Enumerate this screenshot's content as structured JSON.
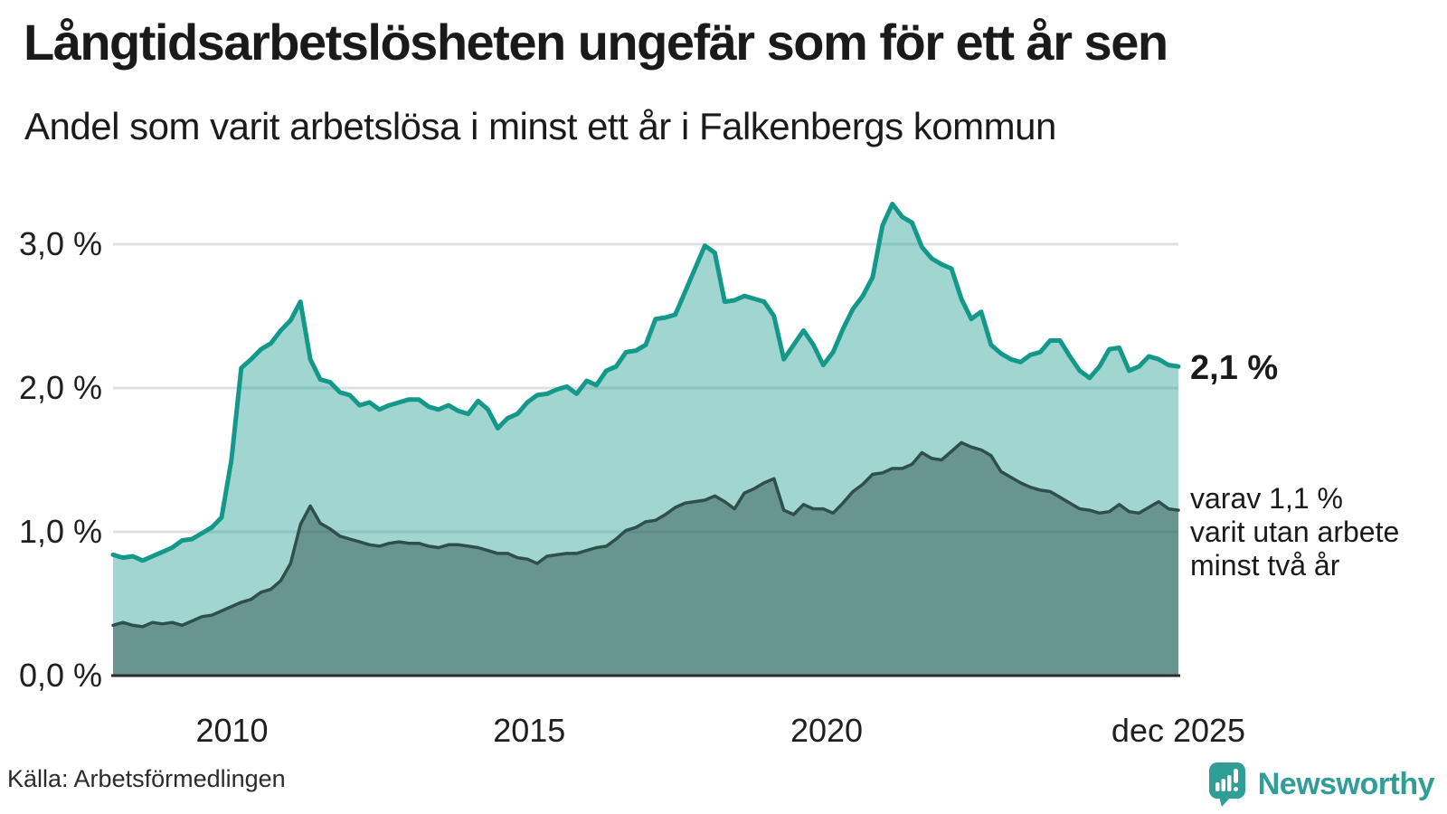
{
  "header": {
    "title": "Långtidsarbetslösheten ungefär som för ett år sen",
    "subtitle": "Andel som varit arbetslösa i minst ett år i Falkenbergs kommun"
  },
  "annotations": {
    "latest_label": "2,1 %",
    "secondary_lines": [
      "varav 1,1 %",
      "varit utan arbete",
      "minst två år"
    ]
  },
  "footer": {
    "source": "Källa: Arbetsförmedlingen",
    "logo_text": "Newsworthy"
  },
  "palette": {
    "teal_line": "#14988a",
    "teal_fill": "rgba(20,152,138,0.40)",
    "dark_line": "#2f4f4b",
    "dark_fill": "rgba(43,76,72,0.47)",
    "gridline": "#dde1e5",
    "axis": "#2b2b2b",
    "text": "#1a1a1a",
    "brand": "#2f9e96"
  },
  "chart_data": {
    "type": "area",
    "title": "Långtidsarbetslösheten ungefär som för ett år sen",
    "subtitle": "Andel som varit arbetslösa i minst ett år i Falkenbergs kommun",
    "x_start": "2008-01",
    "x_end": "2025-12",
    "sampling": "approx. every 2 months, read from plot",
    "total_months": 215,
    "ylim": [
      0,
      3.47
    ],
    "grid": true,
    "legend_position": "none",
    "y_ticks": [
      {
        "value": 0,
        "label": "0,0 %"
      },
      {
        "value": 1,
        "label": "1,0 %"
      },
      {
        "value": 2,
        "label": "2,0 %"
      },
      {
        "value": 3,
        "label": "3,0 %"
      }
    ],
    "x_ticks": [
      {
        "month": 24,
        "label": "2010"
      },
      {
        "month": 84,
        "label": "2015"
      },
      {
        "month": 144,
        "label": "2020"
      },
      {
        "month": 215,
        "label": "dec 2025"
      }
    ],
    "series": [
      {
        "name": "Arbetslösa minst ett år",
        "latest_value": 2.1,
        "line": "#14988a",
        "fill": "rgba(20,152,138,0.40)",
        "line_width": 5,
        "values": [
          0.84,
          0.82,
          0.83,
          0.8,
          0.83,
          0.86,
          0.89,
          0.94,
          0.95,
          0.99,
          1.03,
          1.1,
          1.5,
          2.14,
          2.2,
          2.27,
          2.31,
          2.4,
          2.47,
          2.6,
          2.2,
          2.06,
          2.04,
          1.97,
          1.95,
          1.88,
          1.9,
          1.85,
          1.88,
          1.9,
          1.92,
          1.92,
          1.87,
          1.85,
          1.88,
          1.84,
          1.82,
          1.91,
          1.85,
          1.72,
          1.79,
          1.82,
          1.9,
          1.95,
          1.96,
          1.99,
          2.01,
          1.96,
          2.05,
          2.02,
          2.12,
          2.15,
          2.25,
          2.26,
          2.3,
          2.48,
          2.49,
          2.51,
          2.67,
          2.83,
          2.99,
          2.94,
          2.6,
          2.61,
          2.64,
          2.62,
          2.6,
          2.5,
          2.2,
          2.3,
          2.4,
          2.3,
          2.16,
          2.25,
          2.41,
          2.55,
          2.64,
          2.77,
          3.13,
          3.28,
          3.19,
          3.15,
          2.98,
          2.9,
          2.86,
          2.83,
          2.62,
          2.48,
          2.53,
          2.3,
          2.24,
          2.2,
          2.18,
          2.23,
          2.25,
          2.33,
          2.33,
          2.22,
          2.12,
          2.07,
          2.15,
          2.27,
          2.28,
          2.12,
          2.15,
          2.22,
          2.2,
          2.16,
          2.15
        ]
      },
      {
        "name": "Varav utan arbete minst två år",
        "latest_value": 1.1,
        "line": "#2f4f4b",
        "fill": "rgba(43,76,72,0.47)",
        "line_width": 3.5,
        "values": [
          0.35,
          0.37,
          0.35,
          0.34,
          0.37,
          0.36,
          0.37,
          0.35,
          0.38,
          0.41,
          0.42,
          0.45,
          0.48,
          0.51,
          0.53,
          0.58,
          0.6,
          0.66,
          0.78,
          1.05,
          1.18,
          1.06,
          1.02,
          0.97,
          0.95,
          0.93,
          0.91,
          0.9,
          0.92,
          0.93,
          0.92,
          0.92,
          0.9,
          0.89,
          0.91,
          0.91,
          0.9,
          0.89,
          0.87,
          0.85,
          0.85,
          0.82,
          0.81,
          0.78,
          0.83,
          0.84,
          0.85,
          0.85,
          0.87,
          0.89,
          0.9,
          0.95,
          1.01,
          1.03,
          1.07,
          1.08,
          1.12,
          1.17,
          1.2,
          1.21,
          1.22,
          1.25,
          1.21,
          1.16,
          1.27,
          1.3,
          1.34,
          1.37,
          1.15,
          1.12,
          1.19,
          1.16,
          1.16,
          1.13,
          1.2,
          1.28,
          1.33,
          1.4,
          1.41,
          1.44,
          1.44,
          1.47,
          1.55,
          1.51,
          1.5,
          1.56,
          1.62,
          1.59,
          1.57,
          1.53,
          1.42,
          1.38,
          1.34,
          1.31,
          1.29,
          1.28,
          1.24,
          1.2,
          1.16,
          1.15,
          1.13,
          1.14,
          1.19,
          1.14,
          1.13,
          1.17,
          1.21,
          1.16,
          1.15
        ]
      }
    ]
  }
}
